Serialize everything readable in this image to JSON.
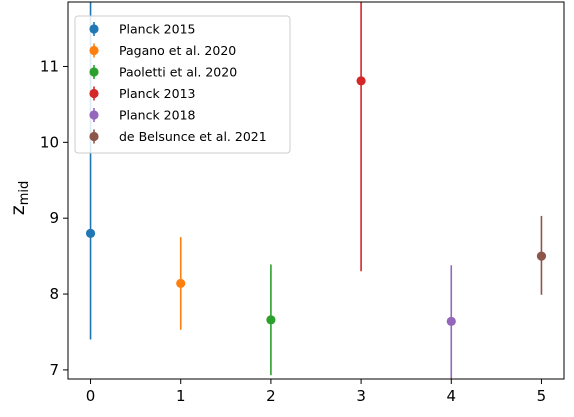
{
  "chart_data": {
    "type": "scatter",
    "ylabel": "z",
    "ylabel_subscript": "mid",
    "xlabel": "",
    "title": "",
    "xlim": [
      -0.25,
      5.25
    ],
    "ylim": [
      6.88,
      11.85
    ],
    "x_ticks": [
      0,
      1,
      2,
      3,
      4,
      5
    ],
    "y_ticks": [
      7,
      8,
      9,
      10,
      11
    ],
    "legend_position": "top-left",
    "grid": false,
    "series": [
      {
        "name": "Planck 2015",
        "color": "#1f77b4",
        "x": 0,
        "y": 8.8,
        "y_low": 7.4,
        "y_high": 11.85
      },
      {
        "name": "Pagano et al. 2020",
        "color": "#ff7f0e",
        "x": 1,
        "y": 8.14,
        "y_low": 7.53,
        "y_high": 8.75
      },
      {
        "name": "Paoletti et al. 2020",
        "color": "#2ca02c",
        "x": 2,
        "y": 7.66,
        "y_low": 6.93,
        "y_high": 8.39
      },
      {
        "name": "Planck 2013",
        "color": "#d62728",
        "x": 3,
        "y": 10.81,
        "y_low": 8.3,
        "y_high": 11.85
      },
      {
        "name": "Planck 2018",
        "color": "#9467bd",
        "x": 4,
        "y": 7.64,
        "y_low": 6.88,
        "y_high": 8.38
      },
      {
        "name": "de Belsunce et al. 2021",
        "color": "#8c564b",
        "x": 5,
        "y": 8.5,
        "y_low": 7.99,
        "y_high": 9.03
      }
    ]
  }
}
